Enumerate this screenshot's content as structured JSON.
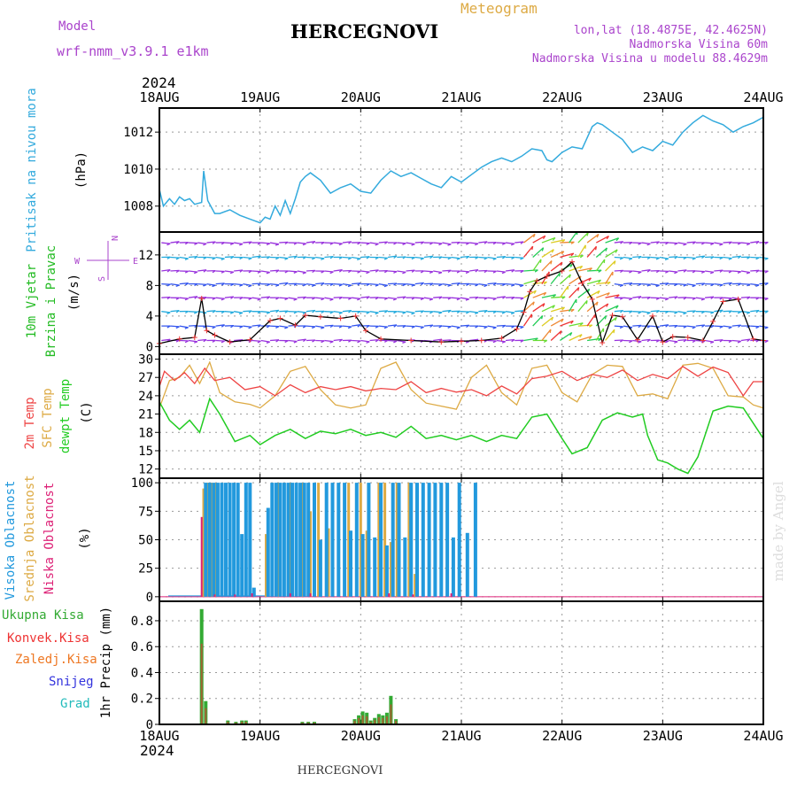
{
  "header": {
    "model_label": "Model",
    "model_name": "wrf-nmm_v3.9.1  e1km",
    "station": "HERCEGNOVI",
    "meteogram": "Meteogram",
    "lonlat": "lon,lat (18.4875E, 42.4625N)",
    "elevation": "Nadmorska Visina 60m",
    "model_elevation": "Nadmorska Visina u modelu 88.4629m",
    "year_top": "2024",
    "year_bottom": "2024",
    "footer_station": "HERCEGNOVI",
    "credit": "made by Angel"
  },
  "colors": {
    "pressure": "#33aadd",
    "temp2m": "#ee4444",
    "sfc_temp": "#ddaa44",
    "dewpoint": "#22cc22",
    "high_cloud": "#2299dd",
    "mid_cloud": "#ddaa44",
    "low_cloud": "#dd2277",
    "total_precip": "#33aa33",
    "conv_precip": "#ee3333",
    "frozen_precip": "#ee7722",
    "snow": "#3333dd",
    "hail": "#22bbbb",
    "label_purple": "#aa44cc"
  },
  "chart_data": [
    {
      "type": "line",
      "panel": "pressure",
      "title": "",
      "ylabel_name": "Pritisak na nivou mora",
      "ylabel_unit": "(hPa)",
      "x_ticks": [
        "18AUG",
        "19AUG",
        "20AUG",
        "21AUG",
        "22AUG",
        "23AUG",
        "24AUG"
      ],
      "x_range_days": [
        0,
        6
      ],
      "ylim": [
        1006.6,
        1013.3
      ],
      "yticks": [
        "1008",
        "1010",
        "1012"
      ],
      "ytick_values": [
        1008,
        1010,
        1012
      ],
      "series": [
        {
          "key": "slp",
          "x": [
            0,
            0.04,
            0.1,
            0.15,
            0.2,
            0.25,
            0.3,
            0.35,
            0.42,
            0.44,
            0.48,
            0.55,
            0.6,
            0.7,
            0.8,
            0.9,
            1.0,
            1.05,
            1.1,
            1.15,
            1.2,
            1.25,
            1.3,
            1.35,
            1.4,
            1.45,
            1.5,
            1.6,
            1.7,
            1.8,
            1.9,
            2.0,
            2.1,
            2.2,
            2.3,
            2.4,
            2.5,
            2.6,
            2.7,
            2.8,
            2.9,
            3.0,
            3.1,
            3.2,
            3.3,
            3.4,
            3.5,
            3.6,
            3.7,
            3.8,
            3.85,
            3.9,
            4.0,
            4.1,
            4.2,
            4.3,
            4.35,
            4.4,
            4.5,
            4.6,
            4.7,
            4.8,
            4.9,
            5.0,
            5.1,
            5.2,
            5.3,
            5.4,
            5.5,
            5.6,
            5.7,
            5.8,
            5.9,
            6.0
          ],
          "values": [
            1008.9,
            1008.0,
            1008.4,
            1008.1,
            1008.5,
            1008.3,
            1008.4,
            1008.1,
            1008.2,
            1009.9,
            1008.3,
            1007.6,
            1007.6,
            1007.8,
            1007.5,
            1007.3,
            1007.1,
            1007.4,
            1007.3,
            1008.0,
            1007.5,
            1008.3,
            1007.6,
            1008.4,
            1009.3,
            1009.6,
            1009.8,
            1009.4,
            1008.7,
            1009.0,
            1009.2,
            1008.8,
            1008.7,
            1009.4,
            1009.9,
            1009.6,
            1009.8,
            1009.5,
            1009.2,
            1009.0,
            1009.6,
            1009.3,
            1009.7,
            1010.1,
            1010.4,
            1010.6,
            1010.4,
            1010.7,
            1011.1,
            1011.0,
            1010.5,
            1010.4,
            1010.9,
            1011.2,
            1011.1,
            1012.3,
            1012.5,
            1012.4,
            1012.0,
            1011.6,
            1010.9,
            1011.2,
            1011.0,
            1011.5,
            1011.3,
            1012.0,
            1012.5,
            1012.9,
            1012.6,
            1012.4,
            1012.0,
            1012.3,
            1012.5,
            1012.8
          ]
        }
      ]
    },
    {
      "type": "line",
      "panel": "wind",
      "ylabel_name1": "10m Vjetar",
      "ylabel_name2": "Brzina i Pravac",
      "ylabel_unit": "(m/s)",
      "compass": {
        "north": "N",
        "south": "S",
        "west": "W",
        "east": "E"
      },
      "ylim": [
        -1,
        15
      ],
      "yticks": [
        "0",
        "4",
        "8",
        "12"
      ],
      "ytick_values": [
        0,
        4,
        8,
        12
      ],
      "series": [
        {
          "key": "wind_speed",
          "x": [
            0,
            0.2,
            0.35,
            0.42,
            0.47,
            0.55,
            0.7,
            0.9,
            1.1,
            1.2,
            1.35,
            1.45,
            1.6,
            1.8,
            1.95,
            2.05,
            2.2,
            2.5,
            2.8,
            3.0,
            3.2,
            3.4,
            3.55,
            3.62,
            3.68,
            3.75,
            3.85,
            4.0,
            4.1,
            4.2,
            4.3,
            4.4,
            4.5,
            4.6,
            4.75,
            4.9,
            5.0,
            5.1,
            5.25,
            5.4,
            5.5,
            5.6,
            5.75,
            5.9,
            6.0
          ],
          "values": [
            0.4,
            1.0,
            1.2,
            6.3,
            2.1,
            1.5,
            0.6,
            0.9,
            3.4,
            3.7,
            2.8,
            4.1,
            3.9,
            3.7,
            4.0,
            2.1,
            1.0,
            0.8,
            0.6,
            0.7,
            0.8,
            1.1,
            2.3,
            4.5,
            7.2,
            8.6,
            9.2,
            9.9,
            11.1,
            8.3,
            6.2,
            0.5,
            4.1,
            3.9,
            0.9,
            4.0,
            0.6,
            1.3,
            1.2,
            0.8,
            3.3,
            5.9,
            6.2,
            1.0,
            0.8
          ]
        }
      ]
    },
    {
      "type": "line",
      "panel": "temperature",
      "ylabel_names": [
        "2m Temp",
        "SFC Temp",
        "dewpt Temp"
      ],
      "ylabel_unit": "(C)",
      "ylim": [
        10.5,
        30.8
      ],
      "yticks": [
        "12",
        "15",
        "18",
        "21",
        "24",
        "27",
        "30"
      ],
      "ytick_values": [
        12,
        15,
        18,
        21,
        24,
        27,
        30
      ],
      "series": [
        {
          "key": "t2m",
          "x": [
            0,
            0.05,
            0.15,
            0.25,
            0.35,
            0.45,
            0.55,
            0.7,
            0.85,
            1.0,
            1.15,
            1.3,
            1.45,
            1.6,
            1.75,
            1.9,
            2.05,
            2.2,
            2.35,
            2.5,
            2.65,
            2.8,
            2.95,
            3.1,
            3.25,
            3.4,
            3.55,
            3.7,
            3.85,
            4.0,
            4.15,
            4.3,
            4.45,
            4.6,
            4.75,
            4.9,
            5.05,
            5.2,
            5.35,
            5.5,
            5.65,
            5.8,
            5.9,
            6.0
          ],
          "values": [
            25.5,
            28.0,
            26.5,
            27.8,
            26.0,
            28.5,
            26.5,
            27.0,
            25.0,
            25.5,
            24.0,
            25.8,
            24.5,
            25.5,
            25.0,
            25.5,
            24.8,
            25.2,
            25.0,
            26.3,
            24.5,
            25.2,
            24.6,
            25.0,
            24.0,
            25.6,
            24.3,
            26.8,
            27.2,
            28.0,
            26.5,
            27.5,
            27.0,
            28.2,
            26.5,
            27.5,
            26.8,
            28.8,
            27.2,
            28.7,
            27.8,
            24.0,
            26.3,
            26.3
          ]
        },
        {
          "key": "sfc",
          "x": [
            0,
            0.1,
            0.2,
            0.3,
            0.4,
            0.5,
            0.6,
            0.75,
            0.9,
            1.0,
            1.15,
            1.3,
            1.45,
            1.6,
            1.75,
            1.9,
            2.05,
            2.2,
            2.35,
            2.5,
            2.65,
            2.8,
            2.95,
            3.1,
            3.25,
            3.4,
            3.55,
            3.7,
            3.85,
            4.0,
            4.15,
            4.3,
            4.45,
            4.6,
            4.75,
            4.9,
            5.05,
            5.2,
            5.35,
            5.5,
            5.65,
            5.8,
            5.9,
            6.0
          ],
          "values": [
            22.0,
            26.5,
            27.0,
            29.0,
            26.0,
            29.5,
            24.5,
            23.0,
            22.6,
            22.0,
            24.0,
            28.0,
            28.8,
            25.0,
            22.5,
            22.0,
            22.5,
            28.5,
            29.5,
            25.0,
            22.8,
            22.3,
            21.8,
            27.0,
            29.0,
            24.5,
            22.5,
            28.5,
            29.0,
            24.5,
            23.0,
            27.5,
            29.0,
            28.8,
            24.0,
            24.3,
            23.5,
            29.0,
            29.3,
            28.5,
            24.0,
            23.8,
            22.5,
            22.0
          ]
        },
        {
          "key": "dew",
          "x": [
            0,
            0.1,
            0.2,
            0.3,
            0.4,
            0.5,
            0.6,
            0.75,
            0.9,
            1.0,
            1.15,
            1.3,
            1.45,
            1.6,
            1.75,
            1.9,
            2.05,
            2.2,
            2.35,
            2.5,
            2.65,
            2.8,
            2.95,
            3.1,
            3.25,
            3.4,
            3.55,
            3.7,
            3.85,
            4.0,
            4.1,
            4.25,
            4.4,
            4.55,
            4.7,
            4.8,
            4.85,
            4.95,
            5.05,
            5.15,
            5.25,
            5.35,
            5.5,
            5.65,
            5.8,
            6.0
          ],
          "values": [
            23.0,
            20.0,
            18.5,
            20.0,
            18.0,
            23.5,
            21.0,
            16.5,
            17.5,
            16.0,
            17.5,
            18.5,
            17.0,
            18.2,
            17.8,
            18.5,
            17.5,
            18.0,
            17.2,
            19.0,
            17.0,
            17.5,
            16.8,
            17.5,
            16.5,
            17.5,
            17.0,
            20.5,
            21.0,
            17.0,
            14.5,
            15.5,
            20.0,
            21.2,
            20.5,
            21.0,
            17.5,
            13.5,
            13.0,
            12.0,
            11.3,
            14.0,
            21.5,
            22.3,
            22.0,
            17.0
          ]
        }
      ]
    },
    {
      "type": "bar",
      "panel": "cloud",
      "ylabel_names": [
        "Visoka Oblacnost",
        "Srednja Oblacnost",
        "Niska Oblacnost"
      ],
      "ylabel_unit": "(%)",
      "ylim": [
        -4,
        104
      ],
      "yticks": [
        "0",
        "25",
        "50",
        "75",
        "100"
      ],
      "ytick_values": [
        0,
        25,
        50,
        75,
        100
      ],
      "series": [
        {
          "key": "high",
          "x": [
            0.46,
            0.5,
            0.54,
            0.58,
            0.62,
            0.66,
            0.7,
            0.74,
            0.78,
            0.82,
            0.86,
            0.9,
            0.94,
            1.08,
            1.12,
            1.16,
            1.2,
            1.24,
            1.28,
            1.32,
            1.36,
            1.4,
            1.44,
            1.48,
            1.54,
            1.6,
            1.66,
            1.72,
            1.78,
            1.84,
            1.9,
            1.96,
            2.02,
            2.08,
            2.14,
            2.2,
            2.26,
            2.32,
            2.38,
            2.44,
            2.5,
            2.56,
            2.62,
            2.68,
            2.74,
            2.8,
            2.86,
            2.92,
            2.98,
            3.06,
            3.14
          ],
          "values": [
            100,
            100,
            100,
            100,
            100,
            100,
            100,
            100,
            100,
            55,
            100,
            100,
            8,
            78,
            100,
            100,
            100,
            100,
            100,
            100,
            100,
            100,
            100,
            100,
            100,
            50,
            100,
            100,
            100,
            100,
            58,
            100,
            55,
            100,
            52,
            100,
            45,
            100,
            100,
            52,
            100,
            100,
            100,
            100,
            100,
            100,
            100,
            52,
            100,
            56,
            100
          ]
        },
        {
          "key": "mid",
          "x": [
            0.44,
            0.48,
            0.52,
            0.56,
            1.06,
            1.18,
            1.3,
            1.42,
            1.5,
            1.58,
            1.68,
            1.88,
            2.0,
            2.06,
            2.18,
            2.24,
            2.3,
            2.36,
            2.48,
            2.54
          ],
          "values": [
            95,
            100,
            100,
            100,
            55,
            100,
            100,
            100,
            75,
            100,
            60,
            100,
            100,
            58,
            100,
            100,
            48,
            100,
            100,
            20
          ]
        },
        {
          "key": "low",
          "x": [
            0.42,
            0.55,
            0.75,
            0.92,
            1.3,
            1.5,
            2.28,
            2.52,
            2.9
          ],
          "values": [
            70,
            2,
            2,
            3,
            3,
            3,
            3,
            2,
            3
          ]
        }
      ]
    },
    {
      "type": "bar",
      "panel": "precip",
      "ylabel_names": [
        "Ukupna Kisa",
        "Konvek.Kisa",
        "Zaledj.Kisa",
        "Snijeg",
        "Grad"
      ],
      "ylabel_unit": "1hr Precip (mm)",
      "ylim": [
        0,
        0.95
      ],
      "yticks": [
        "0",
        "0.2",
        "0.4",
        "0.6",
        "0.8"
      ],
      "ytick_values": [
        0,
        0.2,
        0.4,
        0.6,
        0.8
      ],
      "series": [
        {
          "key": "total",
          "x": [
            0.42,
            0.46,
            0.68,
            0.76,
            0.82,
            0.86,
            1.42,
            1.48,
            1.54,
            1.94,
            1.98,
            2.02,
            2.06,
            2.1,
            2.14,
            2.18,
            2.22,
            2.26,
            2.3,
            2.35
          ],
          "values": [
            0.89,
            0.18,
            0.03,
            0.02,
            0.03,
            0.03,
            0.02,
            0.02,
            0.02,
            0.04,
            0.07,
            0.1,
            0.09,
            0.03,
            0.05,
            0.08,
            0.07,
            0.09,
            0.22,
            0.04
          ]
        }
      ]
    }
  ]
}
